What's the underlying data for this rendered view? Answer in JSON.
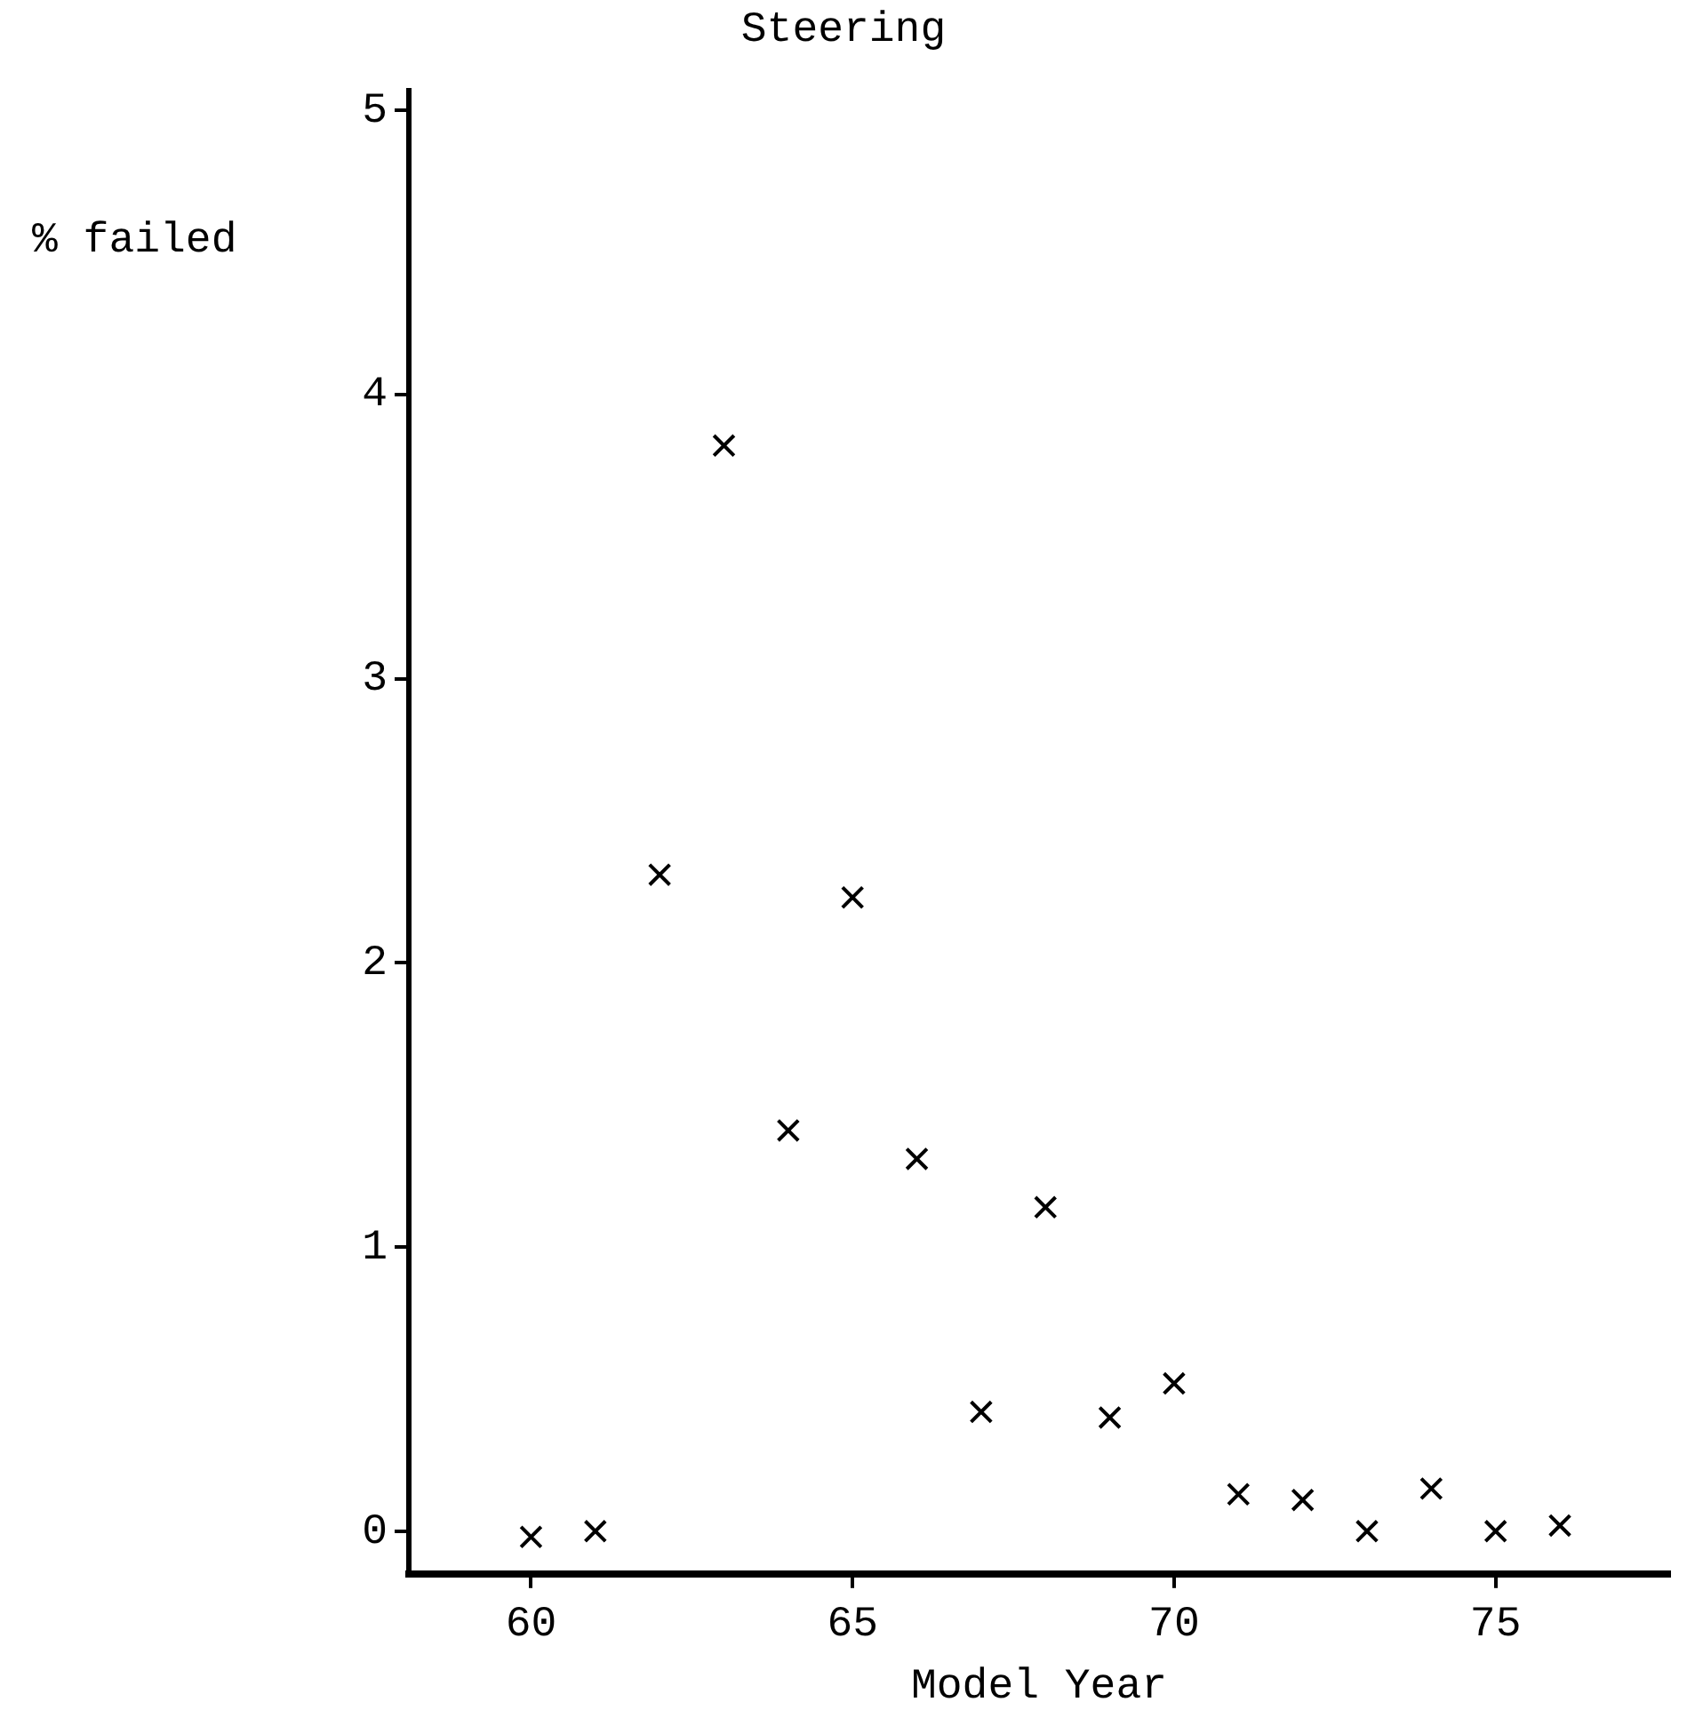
{
  "chart_data": {
    "type": "scatter",
    "title": "Steering",
    "xlabel": "Model Year",
    "ylabel": "% failed",
    "x": [
      60,
      61,
      62,
      63,
      64,
      65,
      66,
      67,
      68,
      69,
      70,
      71,
      72,
      73,
      74,
      75,
      76
    ],
    "series": [
      {
        "color": "#000000",
        "values": [
          -0.02,
          0.0,
          2.31,
          3.82,
          1.41,
          2.23,
          1.31,
          0.42,
          1.14,
          0.4,
          0.52,
          0.13,
          0.11,
          0.0,
          0.15,
          0.0,
          0.02
        ]
      }
    ],
    "xlim": [
      58.1,
      77.7
    ],
    "ylim": [
      -0.15,
      5.07
    ],
    "xticks": [
      60,
      65,
      70,
      75
    ],
    "yticks": [
      0,
      1,
      2,
      3,
      4,
      5
    ],
    "grid": false,
    "legend": false,
    "marker": "cross"
  }
}
